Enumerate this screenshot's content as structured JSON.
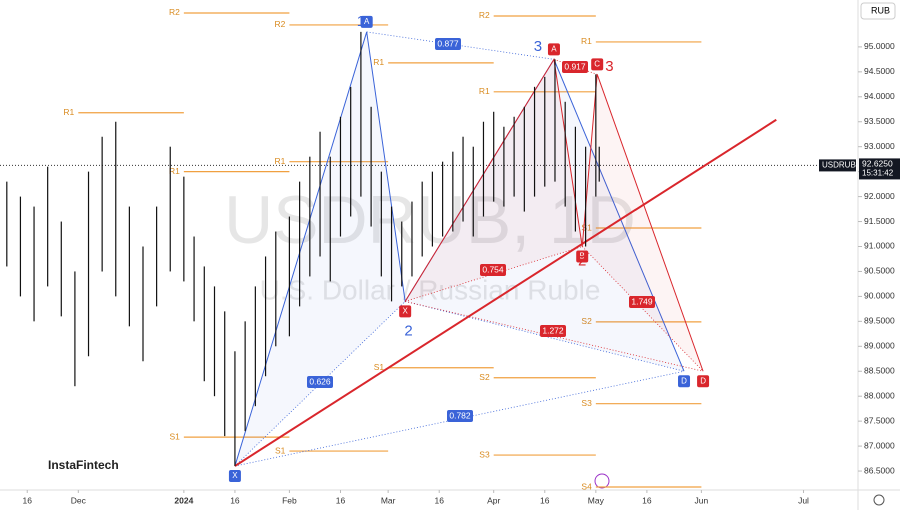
{
  "chart_data": {
    "type": "ohlc",
    "symbol": "USDRUB",
    "currency": "RUB",
    "watermark": "USDRUB, 1D",
    "watermark_sub": "U.S. Dollar / Russian Ruble",
    "brand": "InstaFintech",
    "last_price": 92.625,
    "last_price_label": "92.6250",
    "clock": "15:31:42",
    "xlim": [
      -54,
      198
    ],
    "ylim": [
      86.12,
      95.94
    ],
    "xticks": [
      {
        "value": -46,
        "label": "16"
      },
      {
        "value": -31,
        "label": "Dec"
      },
      {
        "value": 0,
        "label": "2024"
      },
      {
        "value": 15,
        "label": "16"
      },
      {
        "value": 31,
        "label": "Feb"
      },
      {
        "value": 46,
        "label": "16"
      },
      {
        "value": 60,
        "label": "Mar"
      },
      {
        "value": 75,
        "label": "16"
      },
      {
        "value": 91,
        "label": "Apr"
      },
      {
        "value": 106,
        "label": "16"
      },
      {
        "value": 121,
        "label": "May"
      },
      {
        "value": 136,
        "label": "16"
      },
      {
        "value": 152,
        "label": "Jun"
      },
      {
        "value": 182,
        "label": "Jul"
      }
    ],
    "yticks": [
      {
        "value": 86.5,
        "label": "86.5000"
      },
      {
        "value": 87,
        "label": "87.0000"
      },
      {
        "value": 87.5,
        "label": "87.5000"
      },
      {
        "value": 88,
        "label": "88.0000"
      },
      {
        "value": 88.5,
        "label": "88.5000"
      },
      {
        "value": 89,
        "label": "89.0000"
      },
      {
        "value": 89.5,
        "label": "89.5000"
      },
      {
        "value": 90,
        "label": "90.0000"
      },
      {
        "value": 90.5,
        "label": "90.5000"
      },
      {
        "value": 91,
        "label": "91.0000"
      },
      {
        "value": 91.5,
        "label": "91.5000"
      },
      {
        "value": 92,
        "label": "92.0000"
      },
      {
        "value": 92.5,
        "label": "92.5000"
      },
      {
        "value": 93,
        "label": "93.0000"
      },
      {
        "value": 93.5,
        "label": "93.5000"
      },
      {
        "value": 94,
        "label": "94.0000"
      },
      {
        "value": 94.5,
        "label": "94.5000"
      },
      {
        "value": 95,
        "label": "95.0000"
      }
    ],
    "x": [
      -52,
      -48,
      -44,
      -40,
      -36,
      -32,
      -28,
      -24,
      -20,
      -16,
      -12,
      -8,
      -4,
      0,
      3,
      6,
      9,
      12,
      15,
      18,
      21,
      24,
      27,
      31,
      34,
      37,
      40,
      43,
      46,
      49,
      52,
      55,
      58,
      61,
      64,
      67,
      70,
      73,
      76,
      79,
      82,
      85,
      88,
      91,
      94,
      97,
      100,
      103,
      106,
      109,
      112,
      115,
      118,
      121,
      122
    ],
    "high": [
      92.3,
      92.0,
      91.8,
      92.6,
      91.5,
      90.5,
      92.5,
      93.2,
      93.5,
      91.8,
      91.0,
      91.8,
      93.0,
      92.4,
      91.2,
      90.6,
      90.2,
      89.7,
      88.9,
      89.5,
      90.2,
      90.8,
      91.3,
      91.6,
      92.3,
      92.8,
      93.3,
      92.8,
      93.6,
      94.2,
      95.3,
      93.8,
      92.5,
      91.8,
      91.5,
      91.9,
      92.3,
      92.5,
      92.7,
      92.9,
      93.2,
      93.0,
      93.5,
      93.7,
      93.4,
      93.6,
      93.8,
      94.2,
      94.4,
      94.75,
      93.9,
      93.4,
      93.0,
      94.45,
      93.0
    ],
    "low": [
      90.6,
      90.0,
      89.5,
      90.2,
      89.6,
      88.2,
      88.8,
      90.5,
      90.0,
      89.4,
      88.7,
      89.8,
      90.5,
      90.3,
      89.5,
      88.3,
      88.0,
      87.2,
      86.6,
      87.3,
      87.8,
      88.4,
      89.0,
      89.2,
      89.8,
      90.4,
      90.8,
      90.3,
      91.2,
      91.6,
      92.0,
      91.4,
      90.4,
      89.9,
      90.2,
      90.4,
      90.8,
      91.0,
      91.2,
      91.3,
      91.5,
      91.2,
      91.6,
      91.9,
      91.8,
      92.0,
      91.7,
      92.0,
      92.2,
      92.3,
      91.8,
      91.3,
      91.0,
      92.0,
      92.3
    ],
    "color": "#111111",
    "pivots": [
      {
        "label": "R1",
        "value": 93.68,
        "x0": -31,
        "x1": 0
      },
      {
        "label": "R2",
        "value": 95.68,
        "x0": 0,
        "x1": 31
      },
      {
        "label": "R1",
        "value": 92.5,
        "x0": 0,
        "x1": 31
      },
      {
        "label": "S1",
        "value": 87.18,
        "x0": 0,
        "x1": 31
      },
      {
        "label": "R2",
        "value": 95.44,
        "x0": 31,
        "x1": 60
      },
      {
        "label": "R1",
        "value": 92.7,
        "x0": 31,
        "x1": 60
      },
      {
        "label": "S1",
        "value": 86.9,
        "x0": 31,
        "x1": 60
      },
      {
        "label": "R1",
        "value": 94.68,
        "x0": 60,
        "x1": 91
      },
      {
        "label": "S1",
        "value": 88.57,
        "x0": 60,
        "x1": 91
      },
      {
        "label": "R2",
        "value": 95.62,
        "x0": 91,
        "x1": 121
      },
      {
        "label": "R1",
        "value": 94.1,
        "x0": 91,
        "x1": 121
      },
      {
        "label": "S2",
        "value": 88.37,
        "x0": 91,
        "x1": 121
      },
      {
        "label": "S3",
        "value": 86.82,
        "x0": 91,
        "x1": 121
      },
      {
        "label": "R1",
        "value": 95.1,
        "x0": 121,
        "x1": 152
      },
      {
        "label": "S1",
        "value": 91.37,
        "x0": 121,
        "x1": 152
      },
      {
        "label": "S2",
        "value": 89.49,
        "x0": 121,
        "x1": 152
      },
      {
        "label": "S3",
        "value": 87.85,
        "x0": 121,
        "x1": 152
      },
      {
        "label": "S4",
        "value": 86.18,
        "x0": 121,
        "x1": 152
      }
    ],
    "pivot_color": "#f0a040",
    "trendline": {
      "color": "#d9262c",
      "x": [
        15,
        174
      ],
      "y": [
        86.6,
        93.54
      ]
    },
    "patterns": [
      {
        "color": "#3a63d8",
        "x": [
          15,
          53.7,
          65,
          108.7,
          146.9
        ],
        "y": [
          86.6,
          95.3,
          89.9,
          94.75,
          88.5
        ],
        "labels": [
          "X",
          "A",
          null,
          null,
          "D"
        ]
      },
      {
        "color": "#d9262c",
        "x": [
          65,
          108.7,
          117,
          121.4,
          152.5
        ],
        "y": [
          89.9,
          94.75,
          91.0,
          94.45,
          88.5
        ],
        "labels": [
          "X",
          "A",
          "B",
          "C",
          "D"
        ]
      }
    ],
    "ratios": [
      {
        "label": "0.877",
        "color": "#3a63d8"
      },
      {
        "label": "0.626",
        "color": "#3a63d8"
      },
      {
        "label": "0.782",
        "color": "#3a63d8"
      },
      {
        "label": "0.917",
        "color": "#d9262c"
      },
      {
        "label": "0.754",
        "color": "#d9262c"
      },
      {
        "label": "1.272",
        "color": "#d9262c"
      },
      {
        "label": "1.749",
        "color": "#d9262c"
      }
    ],
    "waves": [
      {
        "label": "1",
        "color": "#3a63d8",
        "x": 52,
        "y": 95.5
      },
      {
        "label": "2",
        "color": "#3a63d8",
        "x": 66,
        "y": 89.3
      },
      {
        "label": "3",
        "color": "#3a63d8",
        "x": 104,
        "y": 95.0
      },
      {
        "label": "3",
        "color": "#d9262c",
        "x": 125,
        "y": 94.6
      },
      {
        "label": "2",
        "color": "#d9262c",
        "x": 117,
        "y": 90.7
      }
    ]
  }
}
